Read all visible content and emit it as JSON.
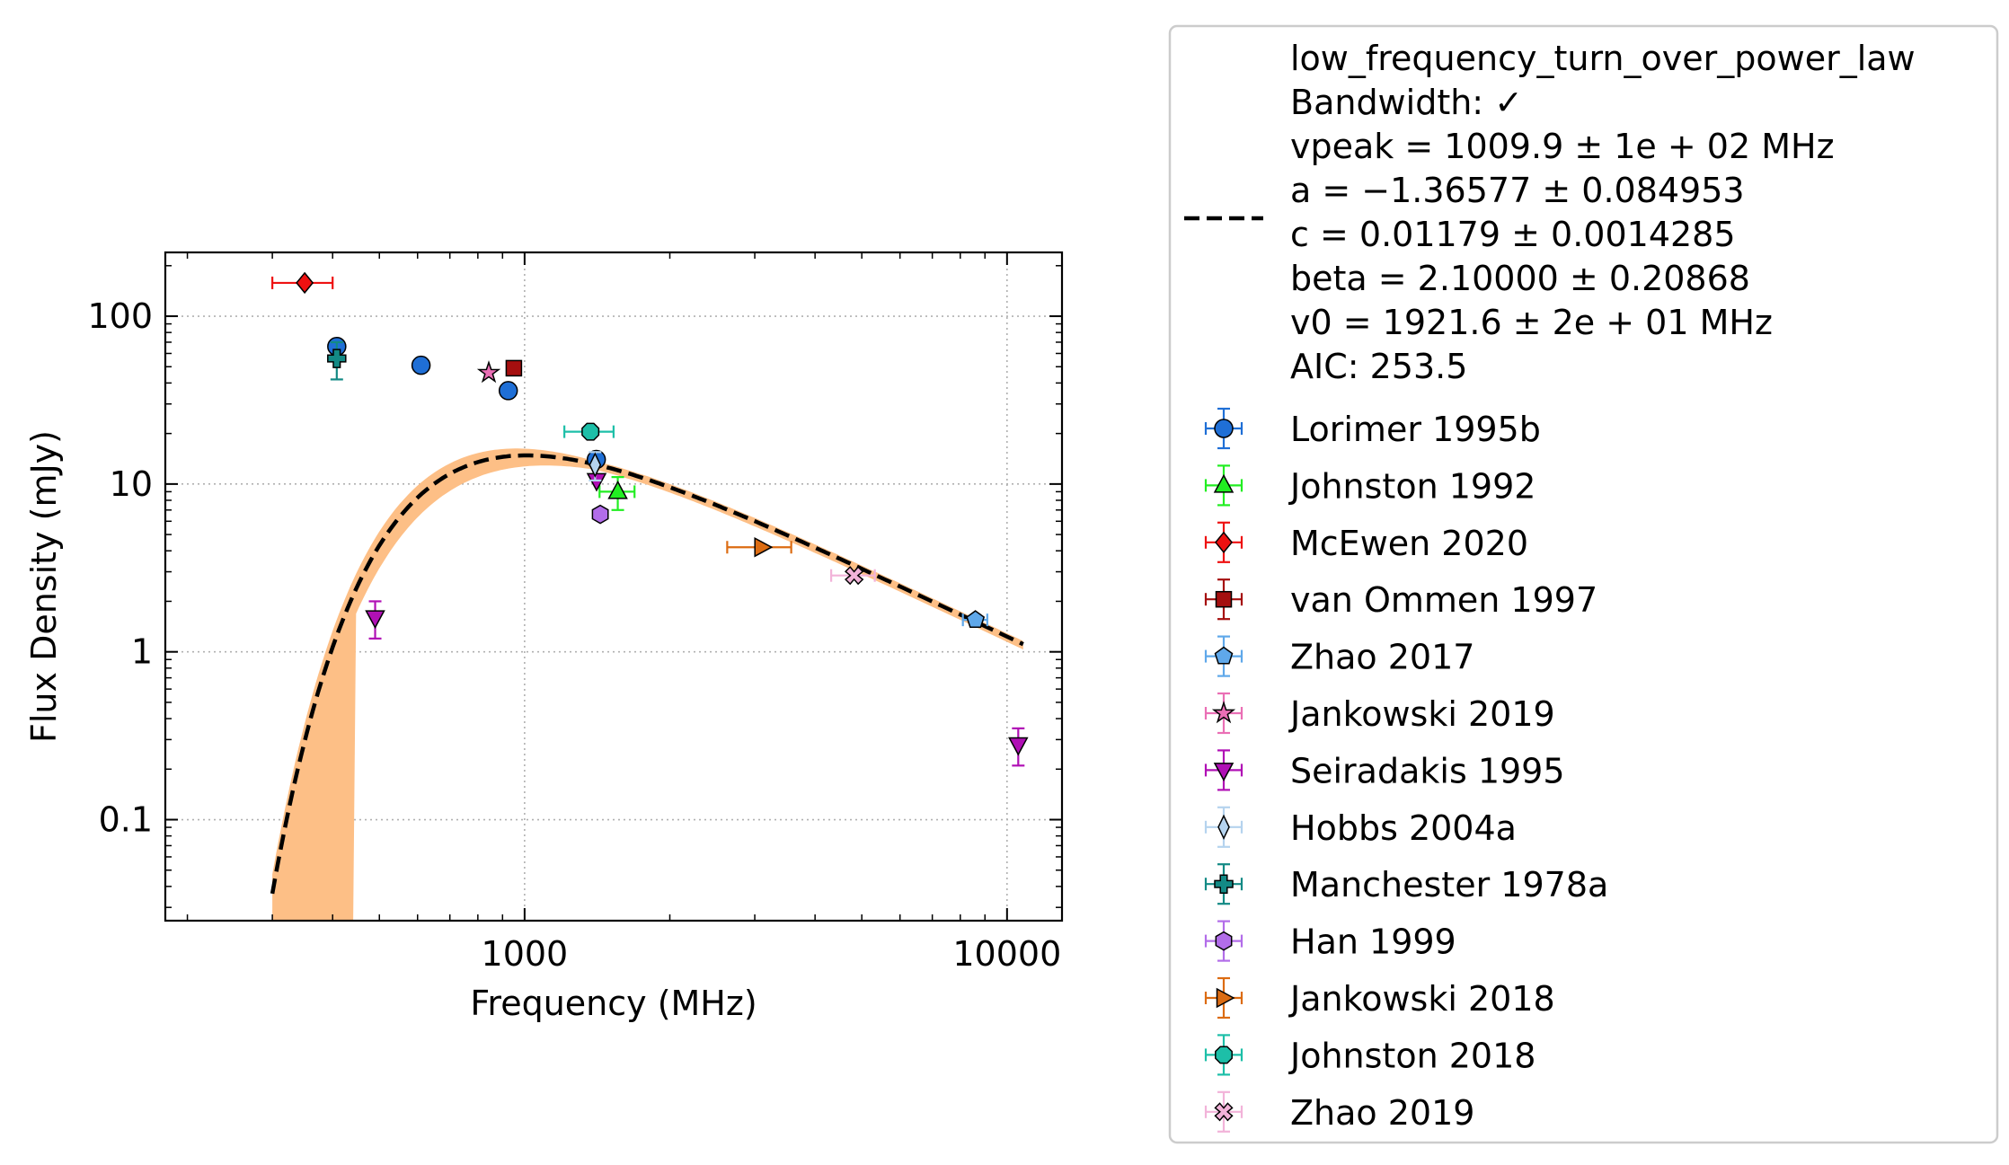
{
  "chart_data": {
    "type": "scatter",
    "xscale": "log",
    "yscale": "log",
    "xlim": [
      180,
      13000
    ],
    "ylim": [
      0.025,
      240
    ],
    "xlabel": "Frequency (MHz)",
    "ylabel": "Flux Density (mJy)",
    "xticks": [
      {
        "value": 1000,
        "label": "1000"
      },
      {
        "value": 10000,
        "label": "10000"
      }
    ],
    "yticks": [
      {
        "value": 0.1,
        "label": "0.1"
      },
      {
        "value": 1,
        "label": "1"
      },
      {
        "value": 10,
        "label": "10"
      },
      {
        "value": 100,
        "label": "100"
      }
    ],
    "grid": true,
    "fit": {
      "name": "low_frequency_turn_over_power_law",
      "model": "low_frequency_turn_over_power_law",
      "color": "#000000",
      "band_color": "#fdbf86",
      "x_range": [
        300,
        10800
      ],
      "params": {
        "vpeak": 1009.9,
        "a": -1.36577,
        "c": 0.01179,
        "beta": 2.1,
        "v0": 1921.6
      },
      "legend_lines": [
        "low_frequency_turn_over_power_law",
        "Bandwidth: ✓",
        "vpeak = 1009.9 ± 1e + 02 MHz",
        "a = −1.36577 ± 0.084953",
        "c = 0.01179 ± 0.0014285",
        "beta = 2.10000 ± 0.20868",
        "v0 = 1921.6 ± 2e + 01 MHz",
        "AIC: 253.5"
      ]
    },
    "series": [
      {
        "name": "Lorimer 1995b",
        "marker": "circle",
        "color": "#1f6fd6",
        "points": [
          {
            "x": 408,
            "y": 66
          },
          {
            "x": 610,
            "y": 51
          },
          {
            "x": 925,
            "y": 36
          },
          {
            "x": 1408,
            "y": 14
          }
        ]
      },
      {
        "name": "Johnston 1992",
        "marker": "triangle-up",
        "color": "#22ee22",
        "points": [
          {
            "x": 1560,
            "y": 9.0,
            "xerr": 130,
            "yerr": 2.0
          }
        ]
      },
      {
        "name": "McEwen 2020",
        "marker": "diamond",
        "color": "#ee1111",
        "points": [
          {
            "x": 350,
            "y": 158,
            "xerr": 50
          }
        ]
      },
      {
        "name": "van Ommen 1997",
        "marker": "square",
        "color": "#a50f0f",
        "points": [
          {
            "x": 950,
            "y": 49
          }
        ]
      },
      {
        "name": "Zhao 2017",
        "marker": "pentagon",
        "color": "#5fa8ea",
        "points": [
          {
            "x": 8600,
            "y": 1.55,
            "xerr": 500
          }
        ]
      },
      {
        "name": "Jankowski 2019",
        "marker": "star",
        "color": "#ea6fb5",
        "points": [
          {
            "x": 843,
            "y": 46
          }
        ]
      },
      {
        "name": "Seiradakis 1995",
        "marker": "triangle-down",
        "color": "#b010b5",
        "points": [
          {
            "x": 1410,
            "y": 10.5
          },
          {
            "x": 10550,
            "y": 0.28,
            "yerr": 0.07
          },
          {
            "x": 490,
            "y": 1.6,
            "yerr": 0.4
          }
        ]
      },
      {
        "name": "Hobbs 2004a",
        "marker": "thin-diamond",
        "color": "#b5d3ee",
        "points": [
          {
            "x": 1400,
            "y": 13,
            "yerr": 2.5
          }
        ]
      },
      {
        "name": "Manchester 1978a",
        "marker": "plus",
        "color": "#138a85",
        "points": [
          {
            "x": 408,
            "y": 56,
            "yerr": 14
          }
        ]
      },
      {
        "name": "Han 1999",
        "marker": "hexagon",
        "color": "#b26de9",
        "points": [
          {
            "x": 1435,
            "y": 6.6
          }
        ]
      },
      {
        "name": "Jankowski 2018",
        "marker": "triangle-right",
        "color": "#dc6c12",
        "points": [
          {
            "x": 3100,
            "y": 4.2,
            "xerr": 470
          }
        ]
      },
      {
        "name": "Johnston 2018",
        "marker": "octagon",
        "color": "#1dbfa8",
        "points": [
          {
            "x": 1369,
            "y": 20.5,
            "xerr": 160
          }
        ]
      },
      {
        "name": "Zhao 2019",
        "marker": "x-filled",
        "color": "#f2b3d9",
        "points": [
          {
            "x": 4820,
            "y": 2.85,
            "xerr": 500
          }
        ]
      }
    ]
  }
}
